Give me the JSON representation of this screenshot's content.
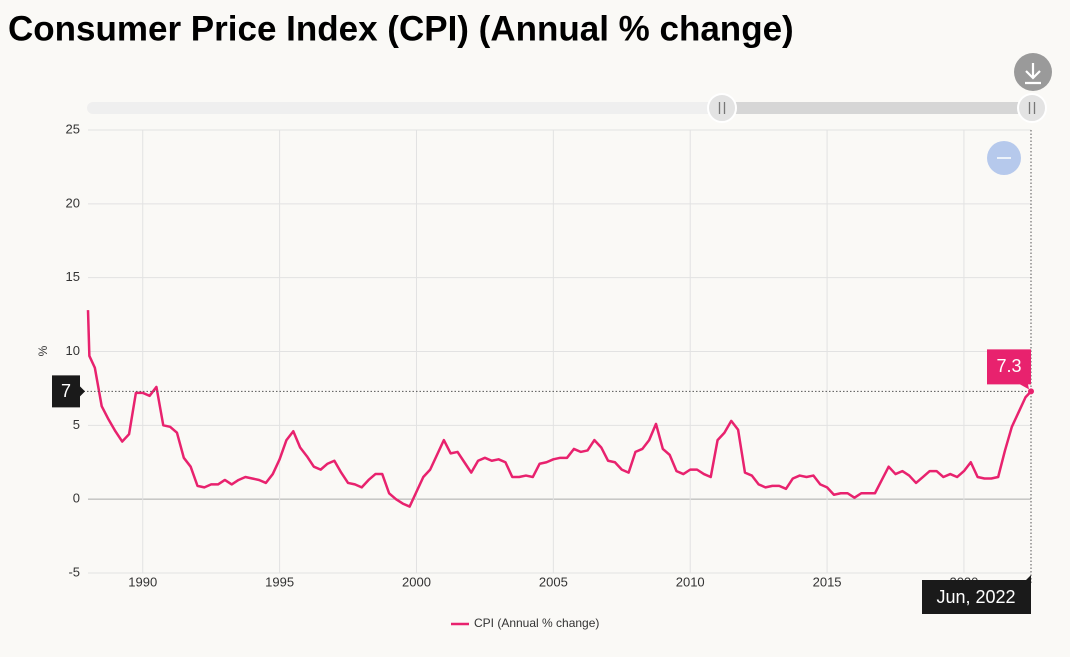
{
  "chart_data": {
    "type": "line",
    "title": "Consumer Price Index (CPI) (Annual % change)",
    "y_label": "%",
    "x": [
      1988,
      1988.05,
      1988.25,
      1988.5,
      1988.75,
      1989,
      1989.25,
      1989.5,
      1989.75,
      1990,
      1990.25,
      1990.5,
      1990.75,
      1991,
      1991.25,
      1991.5,
      1991.75,
      1992,
      1992.25,
      1992.5,
      1992.75,
      1993,
      1993.25,
      1993.5,
      1993.75,
      1994,
      1994.25,
      1994.5,
      1994.75,
      1995,
      1995.25,
      1995.5,
      1995.75,
      1996,
      1996.25,
      1996.5,
      1996.75,
      1997,
      1997.25,
      1997.5,
      1997.75,
      1998,
      1998.25,
      1998.5,
      1998.75,
      1999,
      1999.25,
      1999.5,
      1999.75,
      2000,
      2000.25,
      2000.5,
      2000.75,
      2001,
      2001.25,
      2001.5,
      2001.75,
      2002,
      2002.25,
      2002.5,
      2002.75,
      2003,
      2003.25,
      2003.5,
      2003.75,
      2004,
      2004.25,
      2004.5,
      2004.75,
      2005,
      2005.25,
      2005.5,
      2005.75,
      2006,
      2006.25,
      2006.5,
      2006.75,
      2007,
      2007.25,
      2007.5,
      2007.75,
      2008,
      2008.25,
      2008.5,
      2008.75,
      2009,
      2009.25,
      2009.5,
      2009.75,
      2010,
      2010.25,
      2010.5,
      2010.75,
      2011,
      2011.25,
      2011.5,
      2011.75,
      2012,
      2012.25,
      2012.5,
      2012.75,
      2013,
      2013.25,
      2013.5,
      2013.75,
      2014,
      2014.25,
      2014.5,
      2014.75,
      2015,
      2015.25,
      2015.5,
      2015.75,
      2016,
      2016.25,
      2016.5,
      2016.75,
      2017,
      2017.25,
      2017.5,
      2017.75,
      2018,
      2018.25,
      2018.5,
      2018.75,
      2019,
      2019.25,
      2019.5,
      2019.75,
      2020,
      2020.25,
      2020.5,
      2020.75,
      2021,
      2021.25,
      2021.5,
      2021.75,
      2022,
      2022.25,
      2022.45
    ],
    "series": [
      {
        "name": "CPI (Annual % change)",
        "color": "#e8226e",
        "values": [
          12.8,
          9.7,
          8.9,
          6.3,
          5.4,
          4.6,
          3.9,
          4.4,
          7.2,
          7.2,
          7.0,
          7.6,
          5.0,
          4.9,
          4.5,
          2.8,
          2.2,
          0.9,
          0.8,
          1.0,
          1.0,
          1.3,
          1.0,
          1.3,
          1.5,
          1.4,
          1.3,
          1.1,
          1.7,
          2.7,
          4.0,
          4.6,
          3.5,
          2.9,
          2.2,
          2.0,
          2.4,
          2.6,
          1.8,
          1.1,
          1.0,
          0.8,
          1.3,
          1.7,
          1.7,
          0.4,
          0,
          -0.3,
          -0.5,
          0.5,
          1.5,
          2.0,
          3.0,
          4.0,
          3.1,
          3.2,
          2.5,
          1.8,
          2.6,
          2.8,
          2.6,
          2.7,
          2.5,
          1.5,
          1.5,
          1.6,
          1.5,
          2.4,
          2.5,
          2.7,
          2.8,
          2.8,
          3.4,
          3.2,
          3.3,
          4.0,
          3.5,
          2.6,
          2.5,
          2.0,
          1.8,
          3.2,
          3.4,
          4.0,
          5.1,
          3.4,
          3.0,
          1.9,
          1.7,
          2.0,
          2.0,
          1.7,
          1.5,
          4.0,
          4.5,
          5.3,
          4.7,
          1.8,
          1.6,
          1.0,
          0.8,
          0.9,
          0.9,
          0.7,
          1.4,
          1.6,
          1.5,
          1.6,
          1.0,
          0.8,
          0.3,
          0.4,
          0.4,
          0.1,
          0.4,
          0.4,
          0.4,
          1.3,
          2.2,
          1.7,
          1.9,
          1.6,
          1.1,
          1.5,
          1.9,
          1.9,
          1.5,
          1.7,
          1.5,
          1.9,
          2.5,
          1.5,
          1.4,
          1.4,
          1.5,
          3.3,
          4.9,
          5.9,
          6.9,
          7.3
        ]
      }
    ],
    "xlim": [
      1988,
      2022.45
    ],
    "xticks": [
      1990,
      1995,
      2000,
      2005,
      2010,
      2015,
      2020
    ],
    "ylim": [
      -5,
      25
    ],
    "yticks": [
      -5,
      0,
      5,
      10,
      15,
      20,
      25
    ],
    "grid": true,
    "legend_position": "bottom",
    "crosshair": {
      "y": {
        "value": 7.3,
        "label": "7"
      },
      "x_label": "Jun, 2022"
    }
  }
}
